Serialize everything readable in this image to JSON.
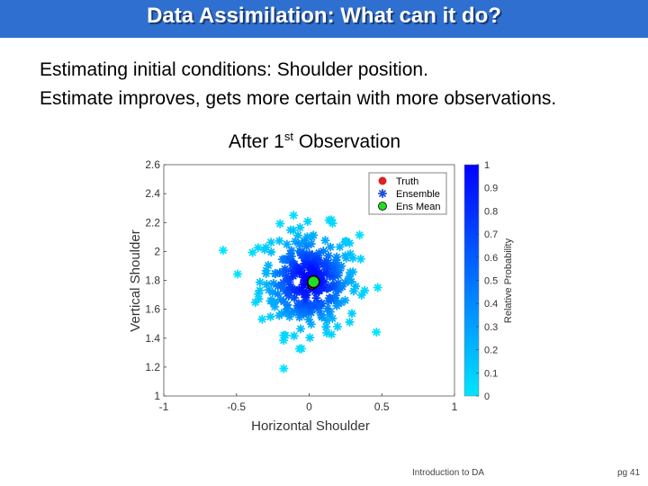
{
  "slide": {
    "title": "Data Assimilation: What can it do?",
    "line1": "Estimating initial conditions: Shoulder position.",
    "line2": "Estimate improves, gets more certain with more observations.",
    "plot_title_pre": "After 1",
    "plot_title_sup": "st",
    "plot_title_post": " Observation",
    "footer_center": "Introduction to DA",
    "footer_page": "pg 41"
  },
  "chart_data": {
    "type": "scatter",
    "xlabel": "Horizontal Shoulder",
    "ylabel": "Vertical Shoulder",
    "xlim": [
      -1,
      1
    ],
    "ylim": [
      1,
      2.6
    ],
    "xticks": [
      -1,
      -0.5,
      0,
      0.5,
      1
    ],
    "yticks": [
      1,
      1.2,
      1.4,
      1.6,
      1.8,
      2,
      2.2,
      2.4,
      2.6
    ],
    "colorbar": {
      "label": "Relative Probability",
      "range": [
        0,
        1
      ],
      "ticks": [
        0,
        0.1,
        0.2,
        0.3,
        0.4,
        0.5,
        0.6,
        0.7,
        0.8,
        0.9,
        1
      ],
      "colors": [
        "#00e5ff",
        "#0000ff"
      ]
    },
    "legend": {
      "placement": "top-right",
      "entries": [
        {
          "label": "Truth",
          "color": "#e02020",
          "marker": "circle"
        },
        {
          "label": "Ensemble",
          "color": "#1f4fd8",
          "marker": "asterisk"
        },
        {
          "label": "Ens Mean",
          "color": "#22dd22",
          "marker": "circle"
        }
      ]
    },
    "truth": {
      "x": 0.02,
      "y": 1.77
    },
    "ens_mean": {
      "x": 0.03,
      "y": 1.79
    },
    "ensemble": {
      "count": 300,
      "mean_x": 0.0,
      "mean_y": 1.8,
      "spread_x": 0.17,
      "spread_y": 0.18
    }
  }
}
